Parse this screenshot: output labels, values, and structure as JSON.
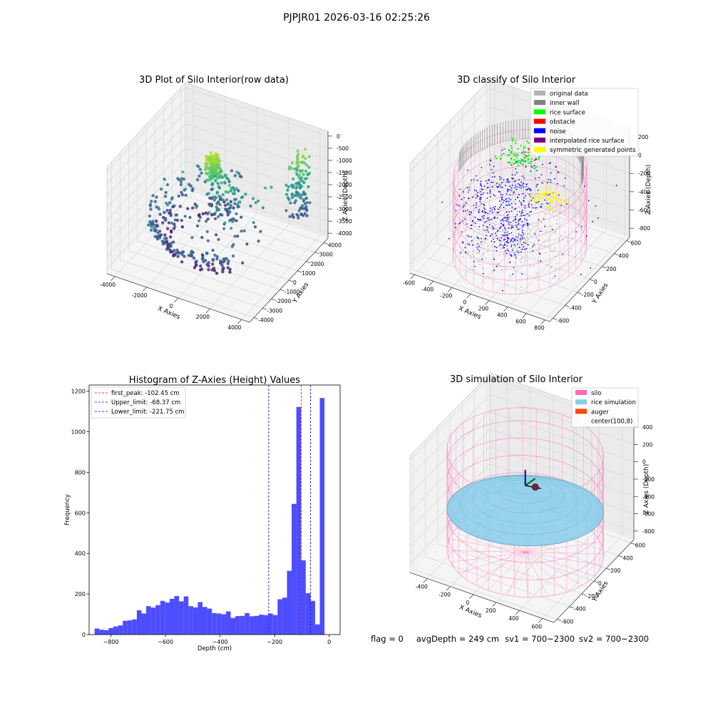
{
  "suptitle": "PJPJR01 2026-03-16 02:25:26",
  "footer": {
    "flag": "flag = 0",
    "avg_depth": "avgDepth = 249 cm",
    "sv1": "sv1 = 700~2300",
    "sv2": "sv2 = 700~2300"
  },
  "colors": {
    "original": "#b3b3b3",
    "inner_wall": "#808080",
    "rice_surface": "#00ff00",
    "obstacle": "#ff0000",
    "noise": "#0000ff",
    "interpolated": "#800080",
    "symmetric": "#ffff00",
    "silo": "#ff69b4",
    "rice_sim": "#87ceeb",
    "auger": "#ff4500",
    "hist_bar": "#4d4dff"
  },
  "chart_data": [
    {
      "id": "raw",
      "type": "scatter",
      "title": "3D Plot of Silo Interior(row data)",
      "xlabel": "X Axies",
      "ylabel": "Y Axies",
      "zlabel": "Z Axies (Depth)",
      "x_ticks": [
        "-4000",
        "-2000",
        "0",
        "2000",
        "4000"
      ],
      "y_ticks": [
        "-4000",
        "-3000",
        "-2000",
        "-1000",
        "0",
        "1000",
        "2000",
        "3000",
        "4000"
      ],
      "z_ticks": [
        "0",
        "-500",
        "-1000",
        "-1500",
        "-2000",
        "-2500",
        "-3000",
        "-3500",
        "-4000"
      ],
      "xlim": [
        -4500,
        4500
      ],
      "ylim": [
        -4500,
        4500
      ],
      "zlim": [
        -4200,
        200
      ],
      "colormap": "viridis",
      "grid": true
    },
    {
      "id": "classify",
      "type": "scatter",
      "title": "3D classify of Silo Interior",
      "xlabel": "X Axies",
      "ylabel": "Y Axies",
      "zlabel": "Z Axies (Depth)",
      "x_ticks": [
        "-600",
        "-400",
        "-200",
        "0",
        "200",
        "400",
        "600",
        "800"
      ],
      "y_ticks": [
        "-600",
        "-400",
        "-200",
        "0",
        "200",
        "400",
        "600"
      ],
      "z_ticks": [
        "200",
        "0",
        "-200",
        "-400",
        "-600",
        "-800"
      ],
      "xlim": [
        -650,
        850
      ],
      "ylim": [
        -650,
        650
      ],
      "zlim": [
        -900,
        300
      ],
      "legend": [
        {
          "label": "original data",
          "color_key": "original"
        },
        {
          "label": "inner wall",
          "color_key": "inner_wall"
        },
        {
          "label": "rice surface",
          "color_key": "rice_surface"
        },
        {
          "label": "obstacle",
          "color_key": "obstacle"
        },
        {
          "label": "noise",
          "color_key": "noise"
        },
        {
          "label": "interpolated rice surface",
          "color_key": "interpolated"
        },
        {
          "label": "symmetric generated points",
          "color_key": "symmetric"
        }
      ],
      "legend_loc": "upper right",
      "grid": true
    },
    {
      "id": "hist",
      "type": "bar",
      "title": "Histogram of Z-Axies (Height) Values",
      "xlabel": "Depth (cm)",
      "ylabel": "Frequency",
      "xlim": [
        -880,
        40
      ],
      "ylim": [
        0,
        1230
      ],
      "x_ticks": [
        -800,
        -600,
        -400,
        -200,
        0
      ],
      "y_ticks": [
        0,
        200,
        400,
        600,
        800,
        1000,
        1200
      ],
      "bin_start": -860,
      "bin_width": 17.2,
      "values": [
        30,
        24,
        22,
        32,
        40,
        45,
        68,
        70,
        75,
        120,
        104,
        140,
        133,
        145,
        166,
        158,
        176,
        190,
        164,
        188,
        140,
        134,
        160,
        136,
        128,
        106,
        104,
        100,
        114,
        82,
        91,
        92,
        106,
        90,
        92,
        98,
        96,
        104,
        96,
        174,
        182,
        314,
        644,
        1122,
        366,
        204,
        166,
        50,
        1166
      ],
      "vlines": [
        {
          "x": -102.45,
          "color": "#ff0000",
          "label": "first_peak: -102.45 cm"
        },
        {
          "x": -68.37,
          "color": "#0000ff",
          "label": "Upper_limit: -68.37 cm"
        },
        {
          "x": -221.75,
          "color": "#0000ff",
          "label": "Lower_limit: -221.75 cm"
        }
      ],
      "legend_loc": "upper left"
    },
    {
      "id": "simulation",
      "type": "surface",
      "title": "3D simulation of Silo Interior",
      "xlabel": "X Axies",
      "ylabel": "Y Axies",
      "zlabel": "Z Axies (Depth)",
      "x_ticks": [
        "-400",
        "-200",
        "0",
        "200",
        "400",
        "600"
      ],
      "y_ticks": [
        "-600",
        "-400",
        "-200",
        "0",
        "200",
        "400",
        "600"
      ],
      "z_ticks": [
        "400",
        "200",
        "0",
        "-200",
        "-400",
        "-600",
        "-800"
      ],
      "xlim": [
        -550,
        700
      ],
      "ylim": [
        -650,
        650
      ],
      "zlim": [
        -900,
        450
      ],
      "legend": [
        {
          "label": "silo",
          "color_key": "silo"
        },
        {
          "label": "rice simulation",
          "color_key": "rice_sim"
        },
        {
          "label": "auger",
          "color_key": "auger"
        },
        {
          "label": "center(100,8)",
          "color_key": ""
        }
      ],
      "legend_loc": "upper right",
      "grid": true
    }
  ]
}
